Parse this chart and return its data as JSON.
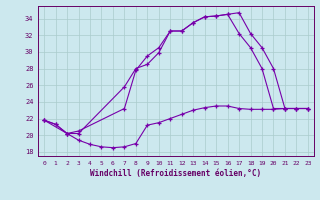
{
  "xlabel": "Windchill (Refroidissement éolien,°C)",
  "bg_color": "#cce8ee",
  "grid_color": "#aacccc",
  "line_color": "#7700aa",
  "xlim": [
    -0.5,
    23.5
  ],
  "ylim": [
    17.5,
    35.5
  ],
  "yticks": [
    18,
    20,
    22,
    24,
    26,
    28,
    30,
    32,
    34
  ],
  "xticks": [
    0,
    1,
    2,
    3,
    4,
    5,
    6,
    7,
    8,
    9,
    10,
    11,
    12,
    13,
    14,
    15,
    16,
    17,
    18,
    19,
    20,
    21,
    22,
    23
  ],
  "line1_x": [
    0,
    1,
    2,
    3,
    4,
    5,
    6,
    7,
    8,
    9,
    10,
    11,
    12,
    13,
    14,
    15,
    16,
    17,
    18,
    19,
    20,
    21,
    22,
    23
  ],
  "line1_y": [
    21.8,
    21.3,
    20.2,
    19.4,
    18.9,
    18.6,
    18.5,
    18.6,
    19.0,
    21.2,
    21.5,
    22.0,
    22.5,
    23.0,
    23.3,
    23.5,
    23.5,
    23.2,
    23.1,
    23.1,
    23.1,
    23.2,
    23.2,
    23.2
  ],
  "line2_x": [
    0,
    2,
    3,
    7,
    8,
    9,
    10,
    11,
    12,
    13,
    14,
    15,
    16,
    17,
    18,
    19,
    20,
    21,
    22,
    23
  ],
  "line2_y": [
    21.8,
    20.2,
    20.5,
    23.2,
    27.8,
    29.5,
    30.5,
    32.5,
    32.5,
    33.5,
    34.2,
    34.3,
    34.5,
    34.7,
    32.2,
    30.5,
    28.0,
    23.2,
    23.2,
    23.2
  ],
  "line3_x": [
    0,
    1,
    2,
    3,
    7,
    8,
    9,
    10,
    11,
    12,
    13,
    14,
    15,
    16,
    17,
    18,
    19,
    20,
    21,
    22,
    23
  ],
  "line3_y": [
    21.8,
    21.3,
    20.2,
    20.2,
    25.8,
    28.0,
    28.5,
    29.9,
    32.5,
    32.5,
    33.5,
    34.2,
    34.3,
    34.5,
    32.2,
    30.5,
    28.0,
    23.2,
    23.2,
    23.2,
    23.2
  ]
}
